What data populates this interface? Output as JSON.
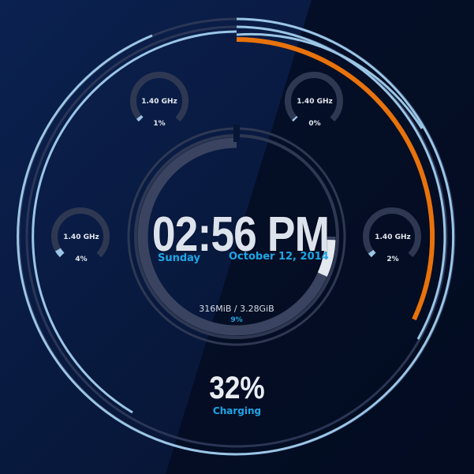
{
  "clock": {
    "time": "02:56 PM",
    "day": "Sunday",
    "date": "October 12, 2014"
  },
  "memory": {
    "used": "316MiB / 3.28GiB",
    "percent_label": "9%",
    "percent_value": 9
  },
  "battery": {
    "percent_label": "32%",
    "percent_value": 32,
    "status": "Charging"
  },
  "cpus": [
    {
      "freq": "1.40 GHz",
      "usage_label": "1%",
      "usage_value": 1
    },
    {
      "freq": "1.40 GHz",
      "usage_label": "0%",
      "usage_value": 0
    },
    {
      "freq": "1.40 GHz",
      "usage_label": "4%",
      "usage_value": 4
    },
    {
      "freq": "1.40 GHz",
      "usage_label": "2%",
      "usage_value": 2
    }
  ],
  "colors": {
    "background": "#071634",
    "accent": "#1fa5e6",
    "orange_arc": "#e8720c",
    "blue_rings": "#9bc6e6",
    "track": "#313a55"
  }
}
